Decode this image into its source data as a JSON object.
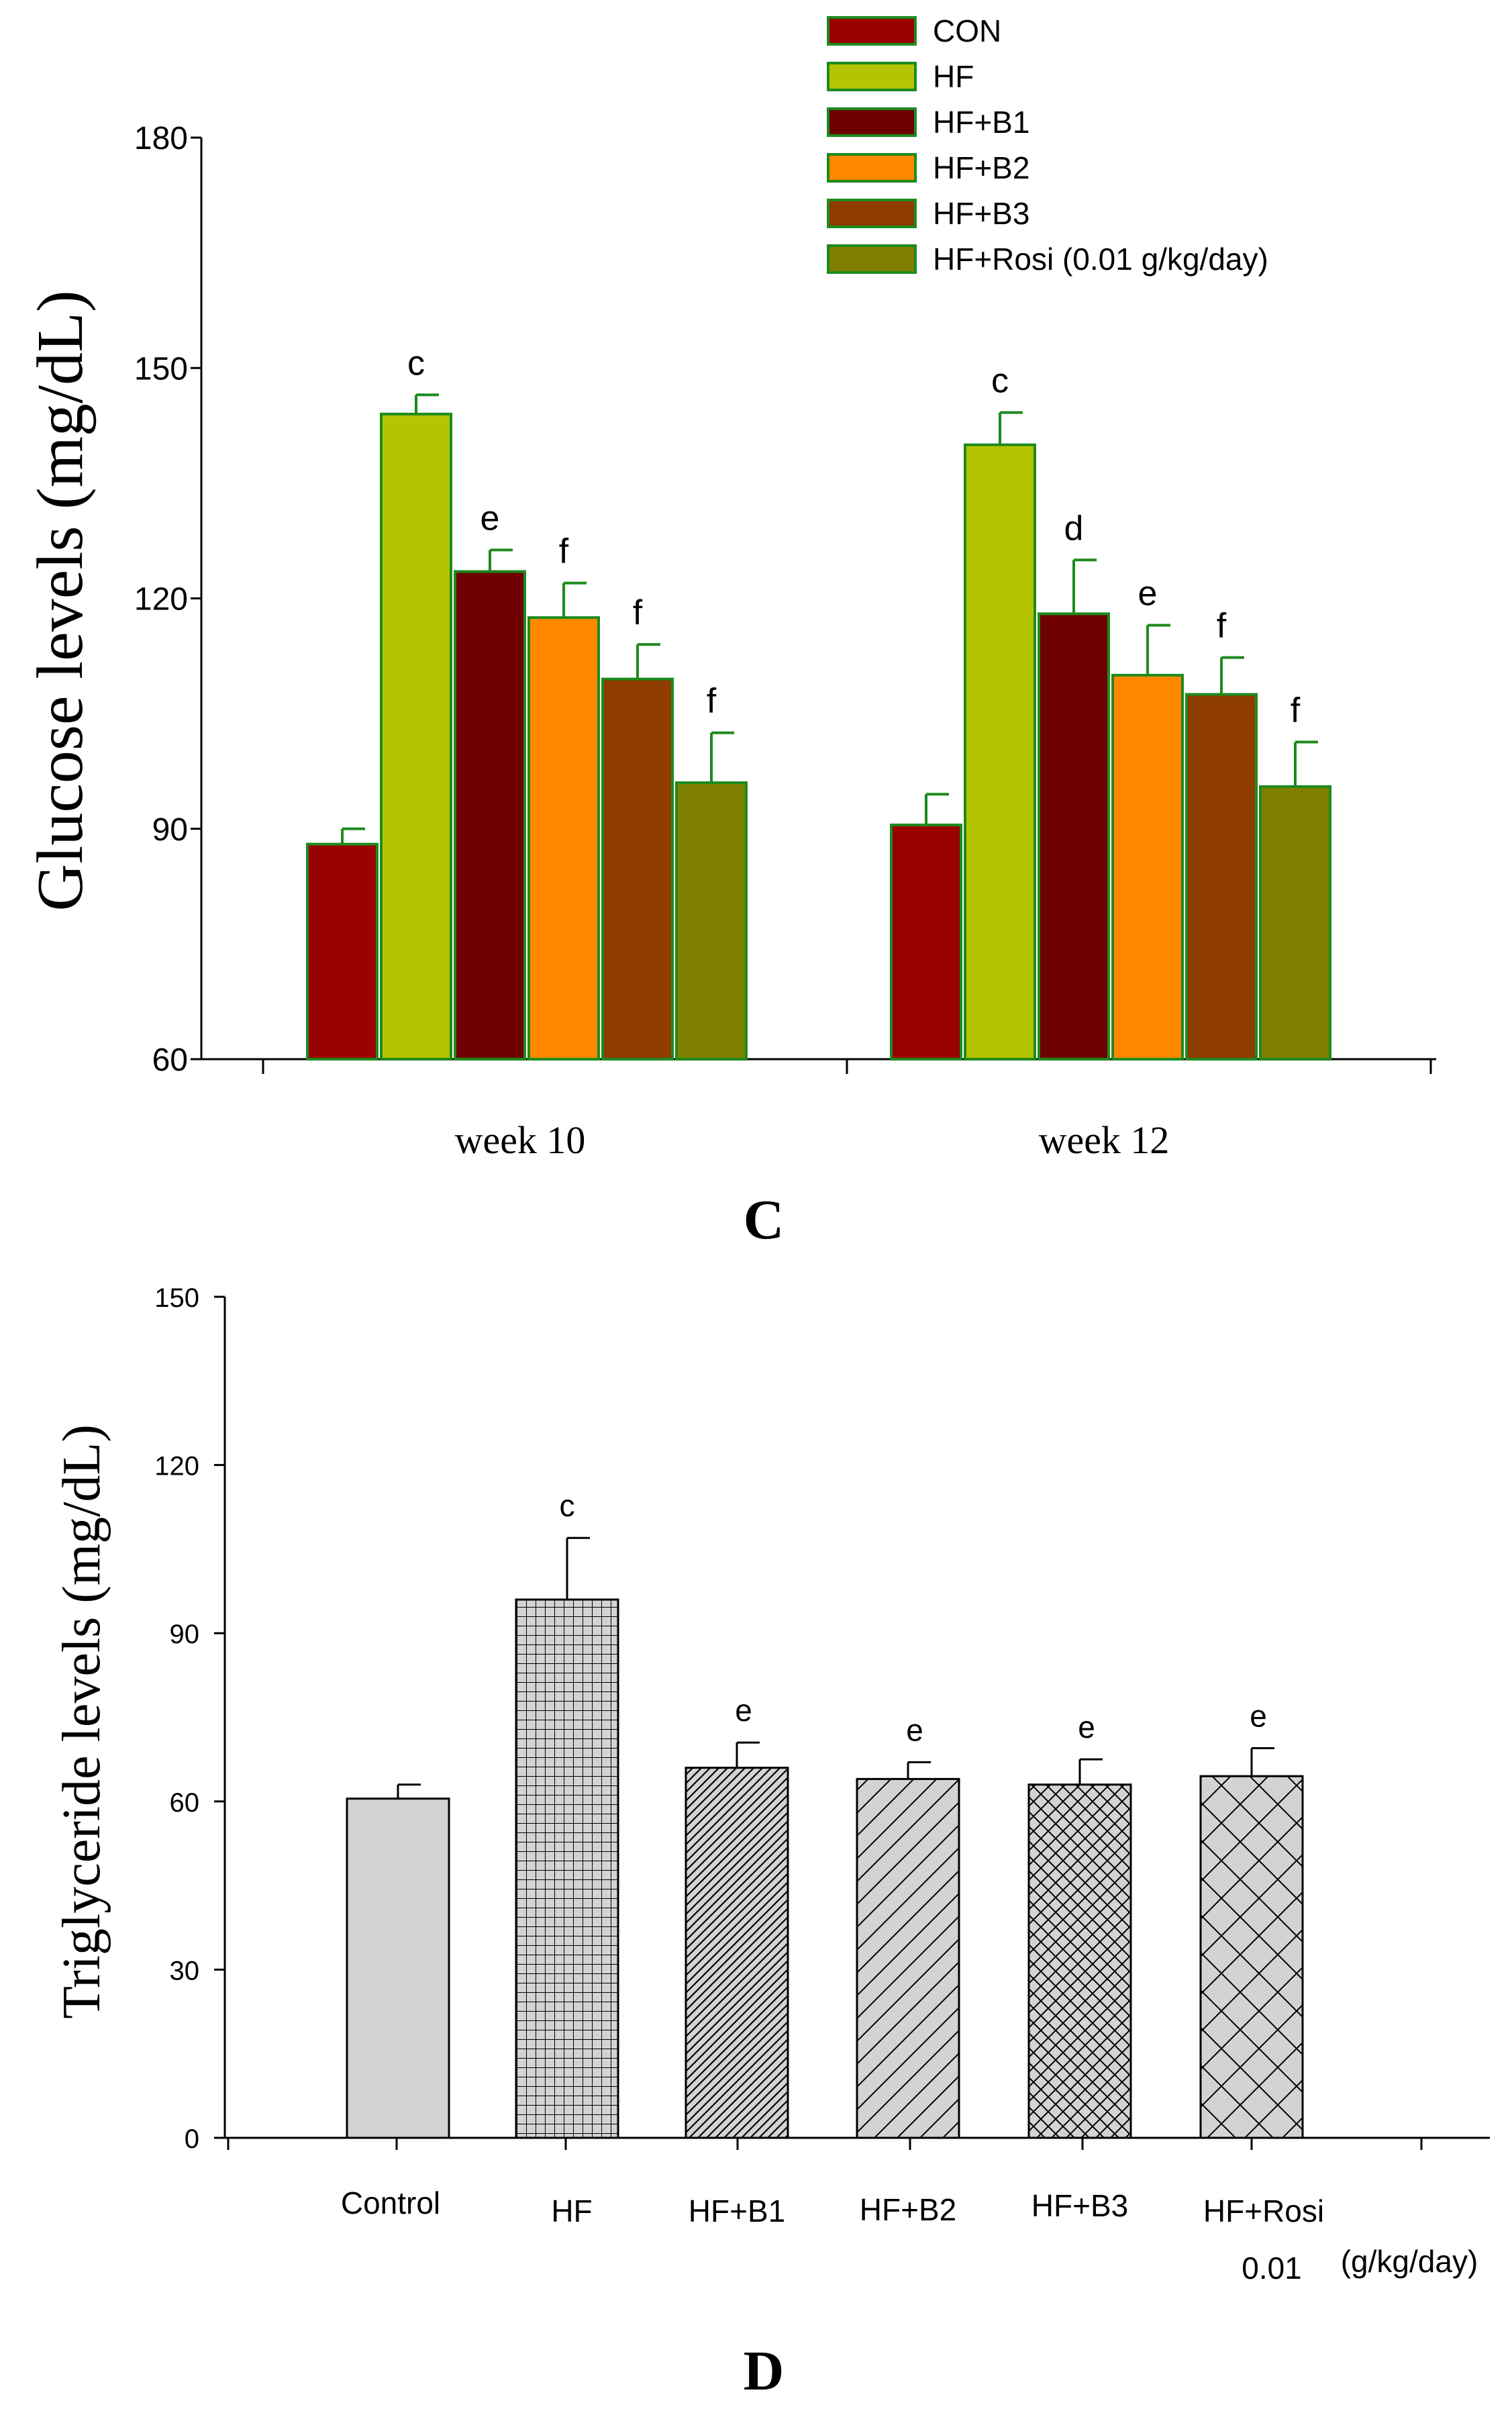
{
  "chart_data": [
    {
      "type": "bar",
      "panel_label": "C",
      "title": "",
      "xlabel": "",
      "ylabel": "Glucose levels (mg/dL)",
      "ylim": [
        60,
        180
      ],
      "yticks": [
        60,
        90,
        120,
        150,
        180
      ],
      "categories": [
        "week 10",
        "week 12"
      ],
      "colors": [
        "#990000",
        "#b5c400",
        "#6e0000",
        "#ff8800",
        "#8e3c00",
        "#7f7f00"
      ],
      "series": [
        {
          "name": "CON",
          "values": [
            88,
            90.5
          ],
          "errors": [
            2,
            4
          ],
          "labels": [
            "",
            ""
          ]
        },
        {
          "name": "HF",
          "values": [
            144,
            140
          ],
          "errors": [
            2.5,
            4.2
          ],
          "labels": [
            "c",
            "c"
          ]
        },
        {
          "name": "HF+B1",
          "values": [
            123.5,
            118
          ],
          "errors": [
            2.8,
            7
          ],
          "labels": [
            "e",
            "d"
          ]
        },
        {
          "name": "HF+B2",
          "values": [
            117.5,
            110
          ],
          "errors": [
            4.5,
            6.5
          ],
          "labels": [
            "f",
            "e"
          ]
        },
        {
          "name": "HF+B3",
          "values": [
            109.5,
            107.5
          ],
          "errors": [
            4.5,
            4.8
          ],
          "labels": [
            "f",
            "f"
          ]
        },
        {
          "name": "HF+Rosi (0.01 g/kg/day)",
          "values": [
            96,
            95.5
          ],
          "errors": [
            6.5,
            5.8
          ],
          "labels": [
            "f",
            "f"
          ]
        }
      ],
      "legend_position": "top-right",
      "grid": false
    },
    {
      "type": "bar",
      "panel_label": "D",
      "title": "",
      "xlabel": "",
      "ylabel": "Triglyceride levels (mg/dL)",
      "ylim": [
        0,
        150
      ],
      "yticks": [
        0,
        30,
        60,
        90,
        120,
        150
      ],
      "categories": [
        "Control",
        "HF",
        "HF+B1",
        "HF+B2",
        "HF+B3",
        "HF+Rosi"
      ],
      "category_note_value": "0.01",
      "category_note_unit": "(g/kg/day)",
      "values": [
        60.5,
        96,
        66,
        64,
        63,
        64.5
      ],
      "errors": [
        2.5,
        11,
        4.5,
        3,
        4.5,
        5
      ],
      "labels": [
        "",
        "c",
        "e",
        "e",
        "e",
        "e"
      ],
      "patterns": [
        "solid",
        "grid",
        "dense-diagonal",
        "diagonal",
        "crosshatch",
        "wide-crosshatch"
      ],
      "bar_color": "#d3d3d3",
      "grid": false
    }
  ]
}
